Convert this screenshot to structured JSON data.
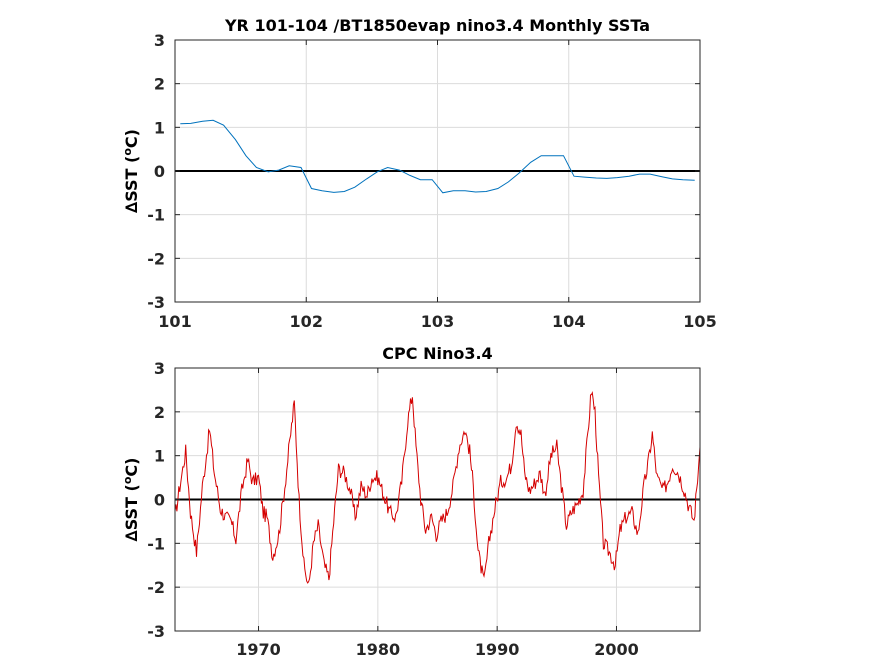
{
  "chart_data": [
    {
      "type": "line",
      "title": "YR 101-104 /BT1850evap nino3.4 Monthly SSTa",
      "ylabel": "∆SST (°C)",
      "ylabel_parts": {
        "main": "∆SST (",
        "sup": "o",
        "unit": "C)"
      },
      "xlim": [
        101,
        105
      ],
      "ylim": [
        -3,
        3
      ],
      "xticks": [
        101,
        102,
        103,
        104,
        105
      ],
      "yticks": [
        -3,
        -2,
        -1,
        0,
        1,
        2,
        3
      ],
      "grid": true,
      "zero_line": true,
      "series": [
        {
          "color": "#0072bd",
          "x": [
            101.04,
            101.12,
            101.21,
            101.29,
            101.37,
            101.46,
            101.54,
            101.62,
            101.71,
            101.79,
            101.87,
            101.96,
            102.04,
            102.12,
            102.21,
            102.29,
            102.37,
            102.46,
            102.54,
            102.62,
            102.71,
            102.79,
            102.87,
            102.96,
            103.04,
            103.12,
            103.21,
            103.29,
            103.37,
            103.46,
            103.54,
            103.62,
            103.71,
            103.79,
            103.87,
            103.96,
            104.04,
            104.12,
            104.21,
            104.29,
            104.37,
            104.46,
            104.54,
            104.62,
            104.71,
            104.79,
            104.87,
            104.96
          ],
          "y": [
            1.08,
            1.09,
            1.14,
            1.16,
            1.05,
            0.72,
            0.35,
            0.08,
            -0.02,
            0.02,
            0.12,
            0.08,
            -0.4,
            -0.45,
            -0.49,
            -0.47,
            -0.37,
            -0.18,
            -0.02,
            0.08,
            0.02,
            -0.1,
            -0.2,
            -0.2,
            -0.5,
            -0.45,
            -0.45,
            -0.48,
            -0.47,
            -0.4,
            -0.25,
            -0.05,
            0.2,
            0.35,
            0.35,
            0.35,
            -0.12,
            -0.14,
            -0.16,
            -0.17,
            -0.15,
            -0.12,
            -0.07,
            -0.07,
            -0.13,
            -0.18,
            -0.2,
            -0.21
          ]
        }
      ]
    },
    {
      "type": "line",
      "title": "CPC Nino3.4",
      "ylabel": "∆SST (°C)",
      "ylabel_parts": {
        "main": "∆SST (",
        "sup": "o",
        "unit": "C)"
      },
      "xlim": [
        1963,
        2007
      ],
      "ylim": [
        -3,
        3
      ],
      "xticks": [
        1970,
        1980,
        1990,
        2000
      ],
      "yticks": [
        -3,
        -2,
        -1,
        0,
        1,
        2,
        3
      ],
      "grid": true,
      "zero_line": true,
      "series": [
        {
          "color": "#d40000",
          "x": [
            1963.0,
            1963.4,
            1963.9,
            1964.3,
            1964.8,
            1965.3,
            1965.9,
            1966.3,
            1966.8,
            1967.2,
            1967.7,
            1968.1,
            1968.6,
            1969.1,
            1969.5,
            1970.0,
            1970.4,
            1970.7,
            1971.2,
            1971.7,
            1972.2,
            1972.7,
            1973.0,
            1973.4,
            1973.8,
            1974.2,
            1974.6,
            1975.0,
            1975.5,
            1975.9,
            1976.3,
            1976.7,
            1977.2,
            1977.7,
            1978.1,
            1978.6,
            1979.1,
            1979.5,
            1980.0,
            1980.5,
            1981.0,
            1981.5,
            1982.0,
            1982.5,
            1982.9,
            1983.2,
            1983.6,
            1984.0,
            1984.5,
            1984.9,
            1985.3,
            1985.8,
            1986.3,
            1986.8,
            1987.3,
            1987.7,
            1988.0,
            1988.4,
            1988.9,
            1989.3,
            1989.8,
            1990.3,
            1990.8,
            1991.2,
            1991.6,
            1992.0,
            1992.3,
            1992.7,
            1993.2,
            1993.6,
            1994.0,
            1994.5,
            1995.0,
            1995.3,
            1995.8,
            1996.2,
            1996.7,
            1997.2,
            1997.6,
            1997.9,
            1998.2,
            1998.5,
            1998.9,
            1999.4,
            1999.9,
            2000.3,
            2000.8,
            2001.3,
            2001.8,
            2002.3,
            2002.7,
            2003.0,
            2003.4,
            2003.9,
            2004.3,
            2004.7,
            2005.2,
            2005.6,
            2006.0,
            2006.5,
            2006.8,
            2007.0
          ],
          "y": [
            -0.4,
            0.3,
            1.1,
            -0.3,
            -1.2,
            0.3,
            1.6,
            0.6,
            -0.2,
            -0.4,
            -0.5,
            -0.9,
            0.2,
            0.9,
            0.4,
            0.5,
            -0.3,
            -0.4,
            -1.3,
            -0.8,
            0.3,
            1.5,
            2.2,
            0.0,
            -1.5,
            -2.0,
            -1.0,
            -0.6,
            -1.5,
            -1.8,
            -0.5,
            0.7,
            0.6,
            0.2,
            -0.4,
            0.3,
            0.1,
            0.5,
            0.5,
            0.1,
            -0.3,
            -0.4,
            0.4,
            1.8,
            2.4,
            1.2,
            0.0,
            -0.7,
            -0.4,
            -0.8,
            -0.5,
            -0.3,
            0.3,
            1.2,
            1.6,
            1.1,
            0.3,
            -1.2,
            -1.9,
            -1.0,
            -0.2,
            0.4,
            0.5,
            0.8,
            1.8,
            1.5,
            0.6,
            0.2,
            0.4,
            0.6,
            0.1,
            1.0,
            1.2,
            0.5,
            -0.6,
            -0.3,
            -0.1,
            0.2,
            1.5,
            2.5,
            2.0,
            0.5,
            -1.0,
            -1.2,
            -1.5,
            -0.7,
            -0.4,
            -0.3,
            -0.8,
            0.3,
            0.9,
            1.5,
            0.5,
            0.2,
            0.4,
            0.8,
            0.6,
            0.3,
            -0.1,
            -0.5,
            0.5,
            1.2
          ]
        }
      ]
    }
  ]
}
